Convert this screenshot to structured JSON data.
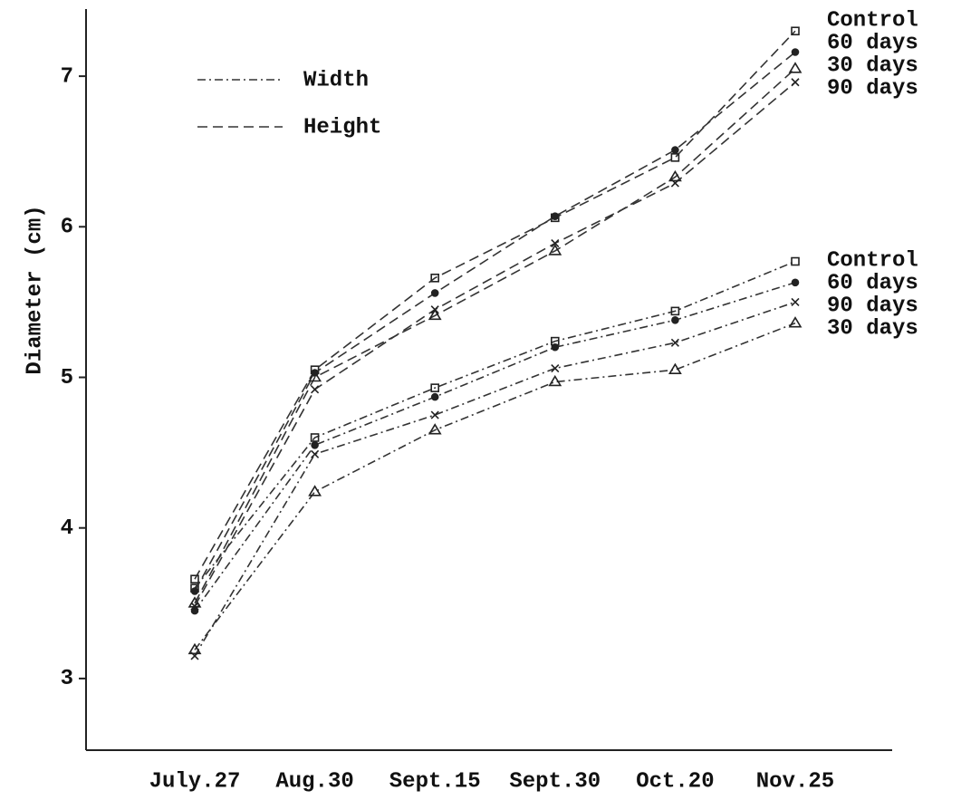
{
  "chart_data": {
    "type": "line",
    "y_label": "Diameter (cm)",
    "categories": [
      "July.27",
      "Aug.30",
      "Sept.15",
      "Sept.30",
      "Oct.20",
      "Nov.25"
    ],
    "ylim": [
      2.5,
      7.5
    ],
    "yticks": [
      3,
      4,
      5,
      6,
      7
    ],
    "groups": [
      {
        "name": "Width",
        "dash": "9 4 2 4",
        "series": [
          {
            "name": "Control",
            "marker": "square",
            "values": [
              3.6,
              4.6,
              4.93,
              5.24,
              5.44,
              5.77
            ]
          },
          {
            "name": "60 days",
            "marker": "dot",
            "values": [
              3.45,
              4.55,
              4.87,
              5.2,
              5.38,
              5.63
            ]
          },
          {
            "name": "90 days",
            "marker": "x",
            "values": [
              3.15,
              4.49,
              4.75,
              5.06,
              5.23,
              5.5
            ]
          },
          {
            "name": "30 days",
            "marker": "triangle",
            "values": [
              3.19,
              4.24,
              4.65,
              4.97,
              5.05,
              5.36
            ]
          }
        ]
      },
      {
        "name": "Height",
        "dash": "11 6",
        "series": [
          {
            "name": "Control",
            "marker": "square",
            "values": [
              3.66,
              5.05,
              5.66,
              6.06,
              6.46,
              7.3
            ]
          },
          {
            "name": "60 days",
            "marker": "dot",
            "values": [
              3.58,
              5.03,
              5.56,
              6.07,
              6.51,
              7.16
            ]
          },
          {
            "name": "30 days",
            "marker": "triangle",
            "values": [
              3.5,
              5.0,
              5.41,
              5.84,
              6.33,
              7.05
            ]
          },
          {
            "name": "90 days",
            "marker": "x",
            "values": [
              3.48,
              4.92,
              5.45,
              5.89,
              6.29,
              6.96
            ]
          }
        ]
      }
    ]
  }
}
